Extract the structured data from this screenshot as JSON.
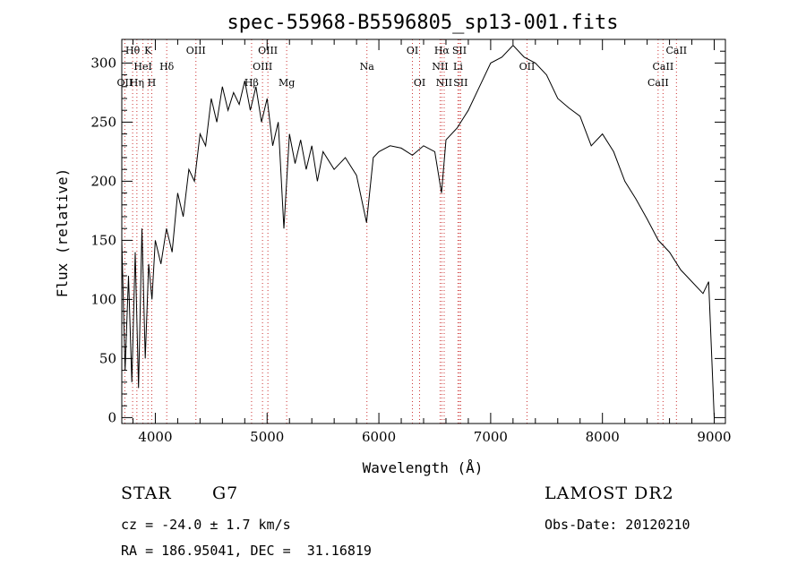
{
  "chart_data": {
    "type": "line",
    "title": "spec-55968-B5596805_sp13-001.fits",
    "xlabel": "Wavelength (Å)",
    "ylabel": "Flux (relative)",
    "xlim": [
      3700,
      9100
    ],
    "ylim": [
      -5,
      320
    ],
    "xticks": [
      4000,
      5000,
      6000,
      7000,
      8000,
      9000
    ],
    "yticks": [
      0,
      50,
      100,
      150,
      200,
      250,
      300
    ],
    "grid": false,
    "line_color": "#000000",
    "marker_color": "#cc3333",
    "series": [
      {
        "x": [
          3700,
          3730,
          3760,
          3790,
          3820,
          3850,
          3880,
          3910,
          3940,
          3970,
          4000,
          4050,
          4100,
          4150,
          4200,
          4250,
          4300,
          4350,
          4400,
          4450,
          4500,
          4550,
          4600,
          4650,
          4700,
          4750,
          4800,
          4850,
          4900,
          4950,
          5000,
          5050,
          5100,
          5150,
          5200,
          5250,
          5300,
          5350,
          5400,
          5450,
          5500,
          5600,
          5700,
          5800,
          5890,
          5950,
          6000,
          6100,
          6200,
          6300,
          6400,
          6500,
          6560,
          6600,
          6700,
          6800,
          6900,
          7000,
          7100,
          7200,
          7300,
          7400,
          7500,
          7600,
          7700,
          7800,
          7900,
          8000,
          8100,
          8200,
          8300,
          8400,
          8500,
          8600,
          8700,
          8800,
          8900,
          8950,
          9000
        ],
        "y": [
          150,
          40,
          120,
          30,
          140,
          25,
          160,
          50,
          130,
          100,
          150,
          130,
          160,
          140,
          190,
          170,
          210,
          200,
          240,
          230,
          270,
          250,
          280,
          260,
          275,
          265,
          285,
          260,
          280,
          250,
          270,
          230,
          250,
          160,
          240,
          215,
          235,
          210,
          230,
          200,
          225,
          210,
          220,
          205,
          165,
          220,
          225,
          230,
          228,
          222,
          230,
          225,
          190,
          235,
          245,
          260,
          280,
          300,
          305,
          315,
          305,
          300,
          290,
          270,
          262,
          255,
          230,
          240,
          225,
          200,
          185,
          168,
          150,
          140,
          125,
          115,
          105,
          115,
          0
        ]
      }
    ],
    "line_markers": [
      {
        "name": "Hθ",
        "x": 3797,
        "row": 0
      },
      {
        "name": "K",
        "x": 3934,
        "row": 0
      },
      {
        "name": "OIII",
        "x": 4363,
        "row": 0
      },
      {
        "name": "OIII",
        "x": 5007,
        "row": 0
      },
      {
        "name": "OI",
        "x": 6300,
        "row": 0
      },
      {
        "name": "Hα",
        "x": 6563,
        "row": 0
      },
      {
        "name": "SII",
        "x": 6720,
        "row": 0
      },
      {
        "name": "CaII",
        "x": 8662,
        "row": 0
      },
      {
        "name": "HeI",
        "x": 3889,
        "row": 1
      },
      {
        "name": "Hδ",
        "x": 4102,
        "row": 1
      },
      {
        "name": "OIII",
        "x": 4959,
        "row": 1
      },
      {
        "name": "Na",
        "x": 5893,
        "row": 1
      },
      {
        "name": "NII",
        "x": 6548,
        "row": 1
      },
      {
        "name": "Li",
        "x": 6708,
        "row": 1
      },
      {
        "name": "OII",
        "x": 7325,
        "row": 1
      },
      {
        "name": "CaII",
        "x": 8542,
        "row": 1
      },
      {
        "name": "OII",
        "x": 3727,
        "row": 2
      },
      {
        "name": "Hη",
        "x": 3835,
        "row": 2
      },
      {
        "name": "H",
        "x": 3968,
        "row": 2
      },
      {
        "name": "Hβ",
        "x": 4861,
        "row": 2
      },
      {
        "name": "Mg",
        "x": 5175,
        "row": 2
      },
      {
        "name": "OI",
        "x": 6364,
        "row": 2
      },
      {
        "name": "NII",
        "x": 6584,
        "row": 2
      },
      {
        "name": "SII",
        "x": 6731,
        "row": 2
      },
      {
        "name": "CaII",
        "x": 8498,
        "row": 2
      }
    ]
  },
  "info": {
    "object_type": "STAR",
    "subclass": "G7",
    "survey": "LAMOST DR2",
    "cz": "cz = -24.0 ± 1.7 km/s",
    "obs_date": "Obs-Date: 20120210",
    "coords": "RA = 186.95041, DEC =  31.16819"
  }
}
